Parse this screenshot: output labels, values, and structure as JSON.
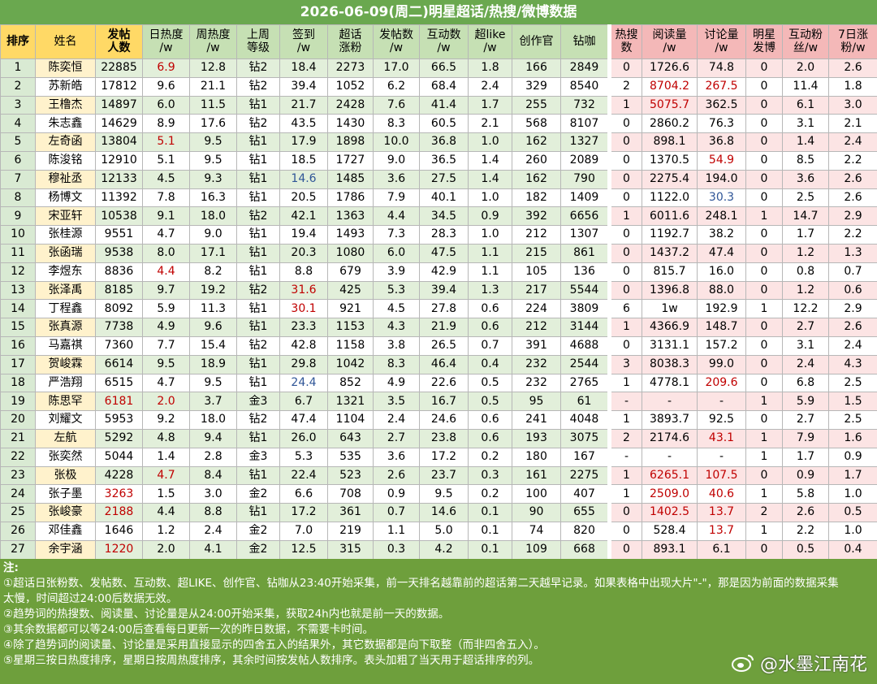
{
  "title": "2026-06-09(周二)明星超话/热搜/微博数据",
  "table": {
    "headers": [
      "排序",
      "姓名",
      "发帖\n人数",
      "日热度\n/w",
      "周热度\n/w",
      "上周\n等级",
      "签到\n/w",
      "超话\n涨粉",
      "发帖数\n/w",
      "互动数\n/w",
      "超like\n/w",
      "创作官",
      "钻咖",
      "热搜\n数",
      "阅读量\n/w",
      "讨论量\n/w",
      "明星\n发博",
      "互动粉\n丝/w",
      "7日涨\n粉/w"
    ],
    "rows": [
      [
        "1",
        "陈奕恒",
        "22885",
        "6.9",
        "12.8",
        "钻2",
        "18.4",
        "2273",
        "17.0",
        "66.5",
        "1.8",
        "166",
        "2849",
        "0",
        "1726.6",
        "74.8",
        "0",
        "2.0",
        "2.6"
      ],
      [
        "2",
        "苏新皓",
        "17812",
        "9.6",
        "21.1",
        "钻2",
        "39.4",
        "1052",
        "6.2",
        "68.4",
        "2.4",
        "329",
        "8540",
        "2",
        "8704.2",
        "267.5",
        "0",
        "11.4",
        "1.8"
      ],
      [
        "3",
        "王橹杰",
        "14897",
        "6.0",
        "11.5",
        "钻1",
        "21.7",
        "2428",
        "7.6",
        "41.4",
        "1.7",
        "255",
        "732",
        "1",
        "5075.7",
        "362.5",
        "0",
        "6.1",
        "3.0"
      ],
      [
        "4",
        "朱志鑫",
        "14629",
        "8.9",
        "17.6",
        "钻2",
        "43.5",
        "1430",
        "8.3",
        "60.5",
        "2.1",
        "568",
        "8107",
        "0",
        "2860.2",
        "76.3",
        "0",
        "3.1",
        "2.1"
      ],
      [
        "5",
        "左奇函",
        "13804",
        "5.1",
        "9.5",
        "钻1",
        "17.9",
        "1898",
        "10.0",
        "36.8",
        "1.0",
        "162",
        "1327",
        "0",
        "898.1",
        "36.8",
        "0",
        "1.4",
        "2.4"
      ],
      [
        "6",
        "陈浚铭",
        "12910",
        "5.1",
        "9.5",
        "钻1",
        "18.5",
        "1727",
        "9.0",
        "36.5",
        "1.4",
        "260",
        "2089",
        "0",
        "1370.5",
        "54.9",
        "0",
        "8.5",
        "2.2"
      ],
      [
        "7",
        "穆祉丞",
        "12133",
        "4.5",
        "9.3",
        "钻1",
        "14.6",
        "1485",
        "3.6",
        "27.5",
        "1.4",
        "162",
        "790",
        "0",
        "2275.4",
        "194.0",
        "0",
        "3.6",
        "2.6"
      ],
      [
        "8",
        "杨博文",
        "11392",
        "7.8",
        "16.3",
        "钻1",
        "20.5",
        "1786",
        "7.9",
        "40.1",
        "1.0",
        "182",
        "1409",
        "0",
        "1122.0",
        "30.3",
        "0",
        "2.5",
        "2.6"
      ],
      [
        "9",
        "宋亚轩",
        "10538",
        "9.1",
        "18.0",
        "钻2",
        "42.1",
        "1363",
        "4.4",
        "34.5",
        "0.9",
        "392",
        "6656",
        "1",
        "6011.6",
        "248.1",
        "1",
        "14.7",
        "2.9"
      ],
      [
        "10",
        "张桂源",
        "9551",
        "4.7",
        "9.0",
        "钻1",
        "19.4",
        "1493",
        "7.3",
        "28.3",
        "1.0",
        "212",
        "1307",
        "0",
        "1192.7",
        "38.2",
        "0",
        "1.7",
        "2.2"
      ],
      [
        "11",
        "张函瑞",
        "9538",
        "8.0",
        "17.1",
        "钻1",
        "20.3",
        "1080",
        "6.0",
        "47.5",
        "1.1",
        "215",
        "861",
        "0",
        "1437.2",
        "47.4",
        "0",
        "1.2",
        "1.3"
      ],
      [
        "12",
        "李煜东",
        "8836",
        "4.4",
        "8.2",
        "钻1",
        "8.8",
        "679",
        "3.9",
        "42.9",
        "1.1",
        "105",
        "136",
        "0",
        "815.7",
        "16.0",
        "0",
        "0.8",
        "0.7"
      ],
      [
        "13",
        "张泽禹",
        "8185",
        "9.7",
        "19.2",
        "钻2",
        "31.6",
        "425",
        "5.3",
        "39.4",
        "1.3",
        "217",
        "5544",
        "0",
        "1396.8",
        "88.0",
        "0",
        "1.2",
        "0.6"
      ],
      [
        "14",
        "丁程鑫",
        "8092",
        "5.9",
        "11.3",
        "钻1",
        "30.1",
        "921",
        "4.5",
        "27.8",
        "0.6",
        "224",
        "3809",
        "6",
        "1w",
        "192.9",
        "1",
        "12.2",
        "2.9"
      ],
      [
        "15",
        "张真源",
        "7738",
        "4.9",
        "9.6",
        "钻1",
        "23.3",
        "1153",
        "4.3",
        "21.9",
        "0.6",
        "212",
        "3144",
        "1",
        "4366.9",
        "148.7",
        "0",
        "2.7",
        "2.6"
      ],
      [
        "16",
        "马嘉祺",
        "7360",
        "7.7",
        "15.4",
        "钻2",
        "42.8",
        "1158",
        "3.8",
        "26.5",
        "0.7",
        "391",
        "4688",
        "0",
        "3131.1",
        "157.2",
        "0",
        "3.1",
        "2.4"
      ],
      [
        "17",
        "贺峻霖",
        "6614",
        "9.5",
        "18.9",
        "钻1",
        "29.8",
        "1042",
        "8.3",
        "46.4",
        "0.4",
        "232",
        "2544",
        "3",
        "8038.3",
        "99.0",
        "0",
        "2.4",
        "4.3"
      ],
      [
        "18",
        "严浩翔",
        "6515",
        "4.7",
        "9.5",
        "钻1",
        "24.4",
        "852",
        "4.9",
        "22.6",
        "0.5",
        "232",
        "2765",
        "1",
        "4778.1",
        "209.6",
        "0",
        "6.8",
        "2.5"
      ],
      [
        "19",
        "陈思罕",
        "6181",
        "2.0",
        "3.7",
        "金3",
        "6.7",
        "1321",
        "3.5",
        "16.7",
        "0.5",
        "95",
        "61",
        "-",
        "-",
        "-",
        "1",
        "5.9",
        "1.5"
      ],
      [
        "20",
        "刘耀文",
        "5953",
        "9.2",
        "18.0",
        "钻2",
        "47.4",
        "1104",
        "2.4",
        "24.6",
        "0.6",
        "241",
        "4048",
        "1",
        "3893.7",
        "92.5",
        "0",
        "2.7",
        "2.5"
      ],
      [
        "21",
        "左航",
        "5292",
        "4.8",
        "9.4",
        "钻1",
        "26.0",
        "643",
        "2.7",
        "23.8",
        "0.6",
        "193",
        "3075",
        "2",
        "2174.6",
        "43.1",
        "1",
        "7.9",
        "1.6"
      ],
      [
        "22",
        "张奕然",
        "5044",
        "1.4",
        "2.8",
        "金3",
        "5.3",
        "535",
        "3.6",
        "17.2",
        "0.2",
        "180",
        "167",
        "-",
        "-",
        "-",
        "1",
        "1.7",
        "0.9"
      ],
      [
        "23",
        "张极",
        "4228",
        "4.7",
        "8.4",
        "钻1",
        "22.4",
        "523",
        "2.6",
        "23.7",
        "0.3",
        "161",
        "2275",
        "1",
        "6265.1",
        "107.5",
        "0",
        "0.9",
        "1.7"
      ],
      [
        "24",
        "张子墨",
        "3263",
        "1.5",
        "3.0",
        "金2",
        "6.6",
        "708",
        "0.9",
        "9.5",
        "0.2",
        "100",
        "407",
        "1",
        "2509.0",
        "40.6",
        "1",
        "5.8",
        "1.0"
      ],
      [
        "25",
        "张峻豪",
        "2188",
        "4.4",
        "8.8",
        "钻1",
        "17.2",
        "361",
        "0.7",
        "14.6",
        "0.1",
        "90",
        "655",
        "0",
        "1402.5",
        "13.7",
        "2",
        "2.6",
        "0.5"
      ],
      [
        "26",
        "邓佳鑫",
        "1646",
        "1.2",
        "2.4",
        "金2",
        "7.0",
        "219",
        "1.1",
        "5.0",
        "0.1",
        "74",
        "820",
        "0",
        "528.4",
        "13.7",
        "1",
        "2.2",
        "1.0"
      ],
      [
        "27",
        "余宇涵",
        "1220",
        "2.0",
        "4.1",
        "金2",
        "12.5",
        "315",
        "0.3",
        "4.2",
        "0.1",
        "109",
        "668",
        "0",
        "893.1",
        "6.1",
        "0",
        "0.5",
        "0.4"
      ]
    ],
    "colored_cells": [
      {
        "row": 0,
        "col": 3,
        "color": "#c00000"
      },
      {
        "row": 4,
        "col": 3,
        "color": "#c00000"
      },
      {
        "row": 11,
        "col": 3,
        "color": "#c00000"
      },
      {
        "row": 18,
        "col": 2,
        "color": "#c00000"
      },
      {
        "row": 18,
        "col": 3,
        "color": "#c00000"
      },
      {
        "row": 22,
        "col": 3,
        "color": "#c00000"
      },
      {
        "row": 23,
        "col": 2,
        "color": "#c00000"
      },
      {
        "row": 24,
        "col": 2,
        "color": "#c00000"
      },
      {
        "row": 26,
        "col": 2,
        "color": "#c00000"
      },
      {
        "row": 6,
        "col": 6,
        "color": "#2f5597"
      },
      {
        "row": 17,
        "col": 6,
        "color": "#2f5597"
      },
      {
        "row": 7,
        "col": 15,
        "color": "#2f5597"
      },
      {
        "row": 12,
        "col": 6,
        "color": "#c00000"
      },
      {
        "row": 13,
        "col": 6,
        "color": "#c00000"
      },
      {
        "row": 1,
        "col": 14,
        "color": "#c00000"
      },
      {
        "row": 1,
        "col": 15,
        "color": "#c00000"
      },
      {
        "row": 2,
        "col": 14,
        "color": "#c00000"
      },
      {
        "row": 5,
        "col": 15,
        "color": "#c00000"
      },
      {
        "row": 17,
        "col": 15,
        "color": "#c00000"
      },
      {
        "row": 20,
        "col": 15,
        "color": "#c00000"
      },
      {
        "row": 22,
        "col": 14,
        "color": "#c00000"
      },
      {
        "row": 22,
        "col": 15,
        "color": "#c00000"
      },
      {
        "row": 23,
        "col": 14,
        "color": "#c00000"
      },
      {
        "row": 23,
        "col": 15,
        "color": "#c00000"
      },
      {
        "row": 24,
        "col": 14,
        "color": "#c00000"
      },
      {
        "row": 24,
        "col": 15,
        "color": "#c00000"
      },
      {
        "row": 25,
        "col": 15,
        "color": "#c00000"
      }
    ]
  },
  "notes": {
    "heading": "注:",
    "items": [
      "①超话日张粉数、发帖数、互动数、超LIKE、创作官、钻咖从23:40开始采集，前一天排名越靠前的超话第二天越早记录。如果表格中出现大片\"-\"，那是因为前面的数据采集太慢，时间超过24:00后数据无效。",
      "②趋势词的热搜数、阅读量、讨论量是从24:00开始采集，获取24h内也就是前一天的数据。",
      "③其余数据都可以等24:00后查看每日更新一次的昨日数据，不需要卡时间。",
      "④除了趋势词的阅读量、讨论量是采用直接显示的四舍五入的结果外，其它数据都是向下取整（而非四舍五入）。",
      "⑤星期三按日热度排序，星期日按周热度排序，其余时间按发帖人数排序。表头加粗了当天用于超话排序的列。"
    ]
  },
  "watermark": "@水墨江南花"
}
